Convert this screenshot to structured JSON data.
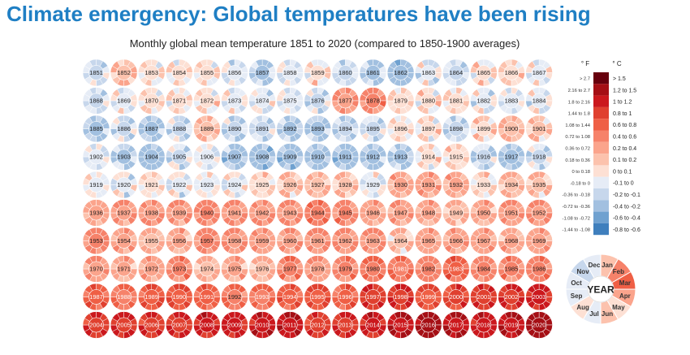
{
  "headline": "Climate emergency: Global temperatures have been rising",
  "chart_data": {
    "type": "heatmap",
    "title": "Monthly global mean temperature 1851 to 2020 (compared to 1850-1900 averages)",
    "description_unit": "°C anomaly (annual mean estimated from color)",
    "years": [
      1851,
      1852,
      1853,
      1854,
      1855,
      1856,
      1857,
      1858,
      1859,
      1860,
      1861,
      1862,
      1863,
      1864,
      1865,
      1866,
      1867,
      1868,
      1869,
      1870,
      1871,
      1872,
      1873,
      1874,
      1875,
      1876,
      1877,
      1878,
      1879,
      1880,
      1881,
      1882,
      1883,
      1884,
      1885,
      1886,
      1887,
      1888,
      1889,
      1890,
      1891,
      1892,
      1893,
      1894,
      1895,
      1896,
      1897,
      1898,
      1899,
      1900,
      1901,
      1902,
      1903,
      1904,
      1905,
      1906,
      1907,
      1908,
      1909,
      1910,
      1911,
      1912,
      1913,
      1914,
      1915,
      1916,
      1917,
      1918,
      1919,
      1920,
      1921,
      1922,
      1923,
      1924,
      1925,
      1926,
      1927,
      1928,
      1929,
      1930,
      1931,
      1932,
      1933,
      1934,
      1935,
      1936,
      1937,
      1938,
      1939,
      1940,
      1941,
      1942,
      1943,
      1944,
      1945,
      1946,
      1947,
      1948,
      1949,
      1950,
      1951,
      1952,
      1953,
      1954,
      1955,
      1956,
      1957,
      1958,
      1959,
      1960,
      1961,
      1962,
      1963,
      1964,
      1965,
      1966,
      1967,
      1968,
      1969,
      1970,
      1971,
      1972,
      1973,
      1974,
      1975,
      1976,
      1977,
      1978,
      1979,
      1980,
      1981,
      1982,
      1983,
      1984,
      1985,
      1986,
      1987,
      1988,
      1989,
      1990,
      1991,
      1992,
      1993,
      1994,
      1995,
      1996,
      1997,
      1998,
      1999,
      2000,
      2001,
      2002,
      2003,
      2004,
      2005,
      2006,
      2007,
      2008,
      2009,
      2010,
      2011,
      2012,
      2013,
      2014,
      2015,
      2016,
      2017,
      2018,
      2019,
      2020
    ],
    "anomalies_c": [
      -0.1,
      0.2,
      0.05,
      0.05,
      0.05,
      -0.05,
      -0.2,
      -0.05,
      0.05,
      -0.1,
      -0.2,
      -0.3,
      -0.05,
      -0.1,
      0.05,
      0.1,
      0.0,
      -0.1,
      0.0,
      0.05,
      0.05,
      0.05,
      0.0,
      -0.05,
      -0.05,
      -0.1,
      0.4,
      0.45,
      0.1,
      0.05,
      0.05,
      -0.05,
      -0.05,
      -0.05,
      -0.2,
      -0.1,
      -0.2,
      -0.1,
      0.2,
      -0.15,
      -0.1,
      -0.2,
      -0.2,
      -0.15,
      -0.1,
      0.05,
      0.05,
      -0.15,
      0.1,
      0.2,
      0.15,
      -0.05,
      -0.2,
      -0.3,
      -0.1,
      -0.05,
      -0.25,
      -0.3,
      -0.3,
      -0.25,
      -0.3,
      -0.25,
      -0.2,
      0.05,
      0.1,
      -0.15,
      -0.25,
      -0.1,
      0.0,
      -0.05,
      0.05,
      -0.05,
      0.0,
      0.0,
      0.1,
      0.15,
      0.2,
      0.15,
      -0.05,
      0.25,
      0.3,
      0.25,
      0.05,
      0.2,
      0.15,
      0.25,
      0.35,
      0.4,
      0.35,
      0.45,
      0.4,
      0.4,
      0.4,
      0.55,
      0.45,
      0.25,
      0.3,
      0.25,
      0.2,
      0.25,
      0.35,
      0.4,
      0.45,
      0.3,
      0.2,
      0.25,
      0.45,
      0.4,
      0.35,
      0.3,
      0.4,
      0.4,
      0.4,
      0.15,
      0.3,
      0.3,
      0.3,
      0.25,
      0.3,
      0.35,
      0.25,
      0.3,
      0.45,
      0.2,
      0.25,
      0.2,
      0.5,
      0.35,
      0.45,
      0.55,
      0.6,
      0.45,
      0.65,
      0.45,
      0.45,
      0.5,
      0.7,
      0.6,
      0.75,
      0.8,
      0.65,
      0.55,
      0.6,
      0.7,
      0.8,
      0.65,
      0.95,
      1.0,
      0.8,
      0.85,
      0.95,
      1.0,
      1.05,
      0.95,
      1.0,
      0.95,
      1.0,
      1.05,
      1.05,
      1.1,
      1.15,
      0.95,
      1.0,
      1.05,
      1.2,
      1.3,
      1.2,
      1.1,
      1.2,
      1.3
    ],
    "month_labels": [
      "Jan",
      "Feb",
      "Mar",
      "Apr",
      "May",
      "Jun",
      "Jul",
      "Aug",
      "Sep",
      "Oct",
      "Nov",
      "Dec"
    ],
    "key_center_label": "YEAR",
    "legend": {
      "header_f": "° F",
      "header_c": "° C",
      "bins": [
        {
          "f": "> 2.7",
          "c": "> 1.5",
          "color": "#67000d"
        },
        {
          "f": "2.16 to 2.7",
          "c": "1.2 to 1.5",
          "color": "#a50f15"
        },
        {
          "f": "1.8 to 2.16",
          "c": "1 to 1.2",
          "color": "#cb181d"
        },
        {
          "f": "1.44 to 1.8",
          "c": "0.8 to 1",
          "color": "#e0402f"
        },
        {
          "f": "1.08 to 1.44",
          "c": "0.6 to 0.8",
          "color": "#ef5f45"
        },
        {
          "f": "0.72 to 1.08",
          "c": "0.4 to 0.6",
          "color": "#f6826a"
        },
        {
          "f": "0.36 to 0.72",
          "c": "0.2 to 0.4",
          "color": "#fba48c"
        },
        {
          "f": "0.18 to 0.36",
          "c": "0.1 to 0.2",
          "color": "#fcc2ad"
        },
        {
          "f": "0 to 0.18",
          "c": "0 to 0.1",
          "color": "#fde0d4"
        },
        {
          "f": "-0.18 to 0",
          "c": "-0.1 to 0",
          "color": "#e6ecf6"
        },
        {
          "f": "-0.36 to -0.18",
          "c": "-0.2 to -0.1",
          "color": "#c7d7ec"
        },
        {
          "f": "-0.72 to -0.36",
          "c": "-0.4 to -0.2",
          "color": "#a2c0e0"
        },
        {
          "f": "-1.08 to -0.72",
          "c": "-0.6 to -0.4",
          "color": "#6fa1d0"
        },
        {
          "f": "-1.44 to -1.08",
          "c": "-0.8 to -0.6",
          "color": "#3f7fbd"
        }
      ]
    }
  }
}
